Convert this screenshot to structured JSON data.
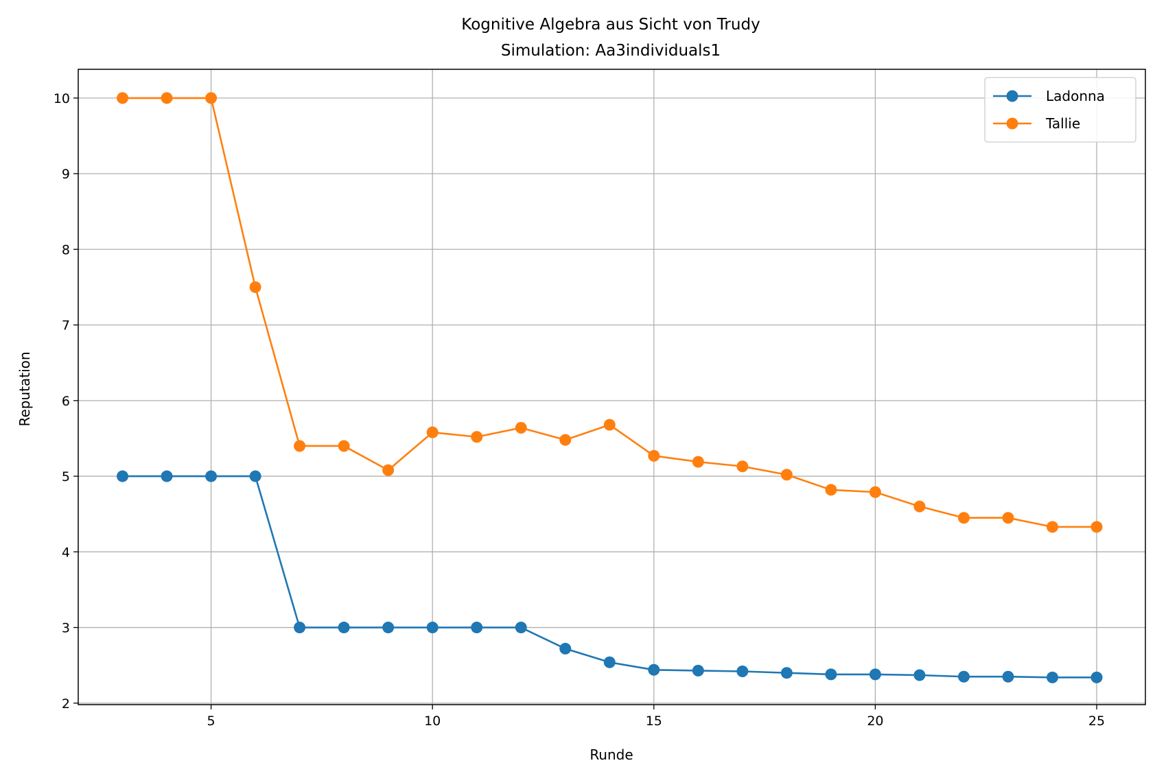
{
  "chart_data": {
    "type": "line",
    "title": "Kognitive Algebra aus Sicht von Trudy",
    "subtitle": "Simulation: Aa3individuals1",
    "xlabel": "Runde",
    "ylabel": "Reputation",
    "xlim": [
      2,
      26.1
    ],
    "ylim": [
      1.98,
      10.38
    ],
    "xticks": [
      5,
      10,
      15,
      20,
      25
    ],
    "yticks": [
      2,
      3,
      4,
      5,
      6,
      7,
      8,
      9,
      10
    ],
    "grid": true,
    "legend_position": "top-right",
    "x": [
      3,
      4,
      5,
      6,
      7,
      8,
      9,
      10,
      11,
      12,
      13,
      14,
      15,
      16,
      17,
      18,
      19,
      20,
      21,
      22,
      23,
      24,
      25
    ],
    "series": [
      {
        "name": "Ladonna",
        "color": "#1f77b4",
        "marker": "circle",
        "values": [
          5,
          5,
          5,
          5,
          3,
          3,
          3,
          3,
          3,
          3,
          2.72,
          2.54,
          2.44,
          2.43,
          2.42,
          2.4,
          2.38,
          2.38,
          2.37,
          2.35,
          2.35,
          2.34,
          2.34
        ]
      },
      {
        "name": "Tallie",
        "color": "#ff7f0e",
        "marker": "circle",
        "values": [
          10,
          10,
          10,
          7.5,
          5.4,
          5.4,
          5.08,
          5.58,
          5.52,
          5.64,
          5.48,
          5.68,
          5.27,
          5.19,
          5.13,
          5.02,
          4.82,
          4.79,
          4.6,
          4.45,
          4.45,
          4.33,
          4.33
        ]
      }
    ]
  }
}
